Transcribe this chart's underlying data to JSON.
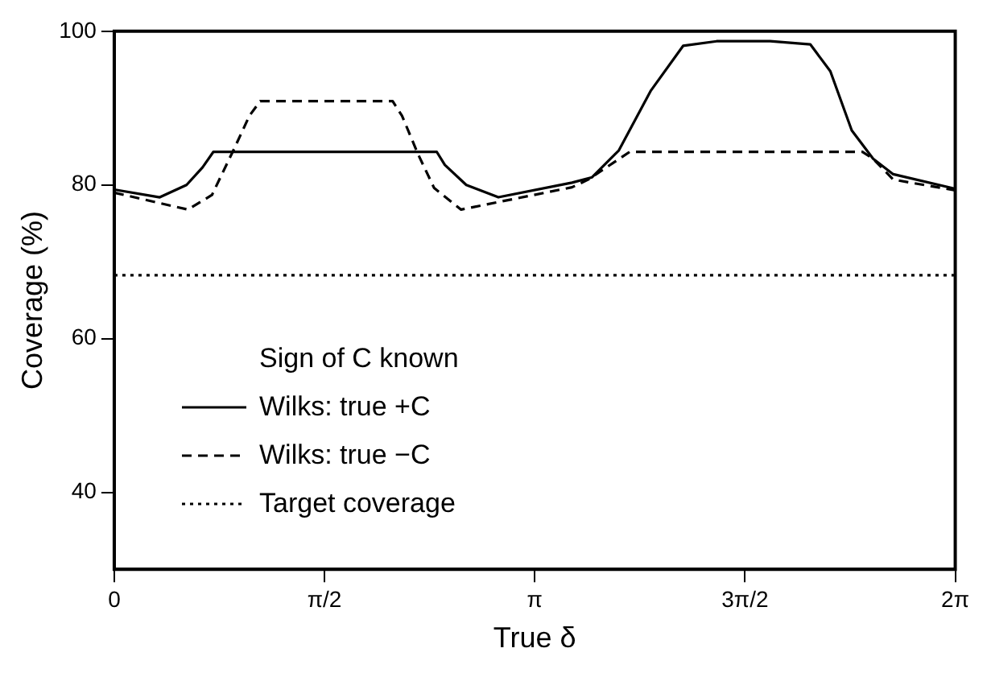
{
  "chart_data": {
    "type": "line",
    "xlabel": "True δ",
    "ylabel": "Coverage (%)",
    "legend_title": "Sign of C known",
    "legend": "bottom left",
    "grid": false,
    "marker": "none",
    "xlim": [
      0,
      6.2832
    ],
    "ylim": [
      30,
      100
    ],
    "xticks": [
      0,
      {
        "value": 1.5708,
        "label": "π/2"
      },
      {
        "value": 3.1416,
        "label": "π"
      },
      {
        "value": 4.7124,
        "label": "3π/2"
      },
      {
        "value": 6.2832,
        "label": "2π"
      }
    ],
    "yticks": [
      40,
      60,
      80,
      100
    ],
    "series": [
      {
        "name": "Wilks: true +C",
        "color": "#000000",
        "line_style": "solid",
        "x": [
          0,
          0.34,
          0.54,
          0.66,
          0.74,
          2.41,
          2.47,
          2.63,
          2.87,
          3.42,
          3.57,
          3.77,
          4.01,
          4.25,
          4.5,
          4.9,
          5.2,
          5.35,
          5.51,
          5.67,
          5.82,
          6.2832
        ],
        "values": [
          79.4,
          78.4,
          80.0,
          82.3,
          84.3,
          84.3,
          82.6,
          80.0,
          78.4,
          80.3,
          81.0,
          84.5,
          92.3,
          98.1,
          98.7,
          98.7,
          98.3,
          94.8,
          87.1,
          83.4,
          81.4,
          79.5
        ]
      },
      {
        "name": "Wilks: true −C",
        "color": "#000000",
        "line_style": "dashed",
        "x": [
          0,
          0.55,
          0.73,
          0.89,
          1.01,
          1.09,
          2.08,
          2.15,
          2.27,
          2.39,
          2.59,
          3.42,
          3.54,
          3.85,
          5.59,
          5.67,
          5.82,
          6.2832
        ],
        "values": [
          79.0,
          76.8,
          78.7,
          84.5,
          89.0,
          90.9,
          90.9,
          89.0,
          84.0,
          79.6,
          76.8,
          79.7,
          80.7,
          84.3,
          84.3,
          83.4,
          80.7,
          79.3
        ]
      }
    ],
    "ref_lines": [
      {
        "axis": "y",
        "value": 68.27,
        "label": "Target coverage",
        "color": "#000000",
        "line_style": "dotted"
      }
    ]
  }
}
